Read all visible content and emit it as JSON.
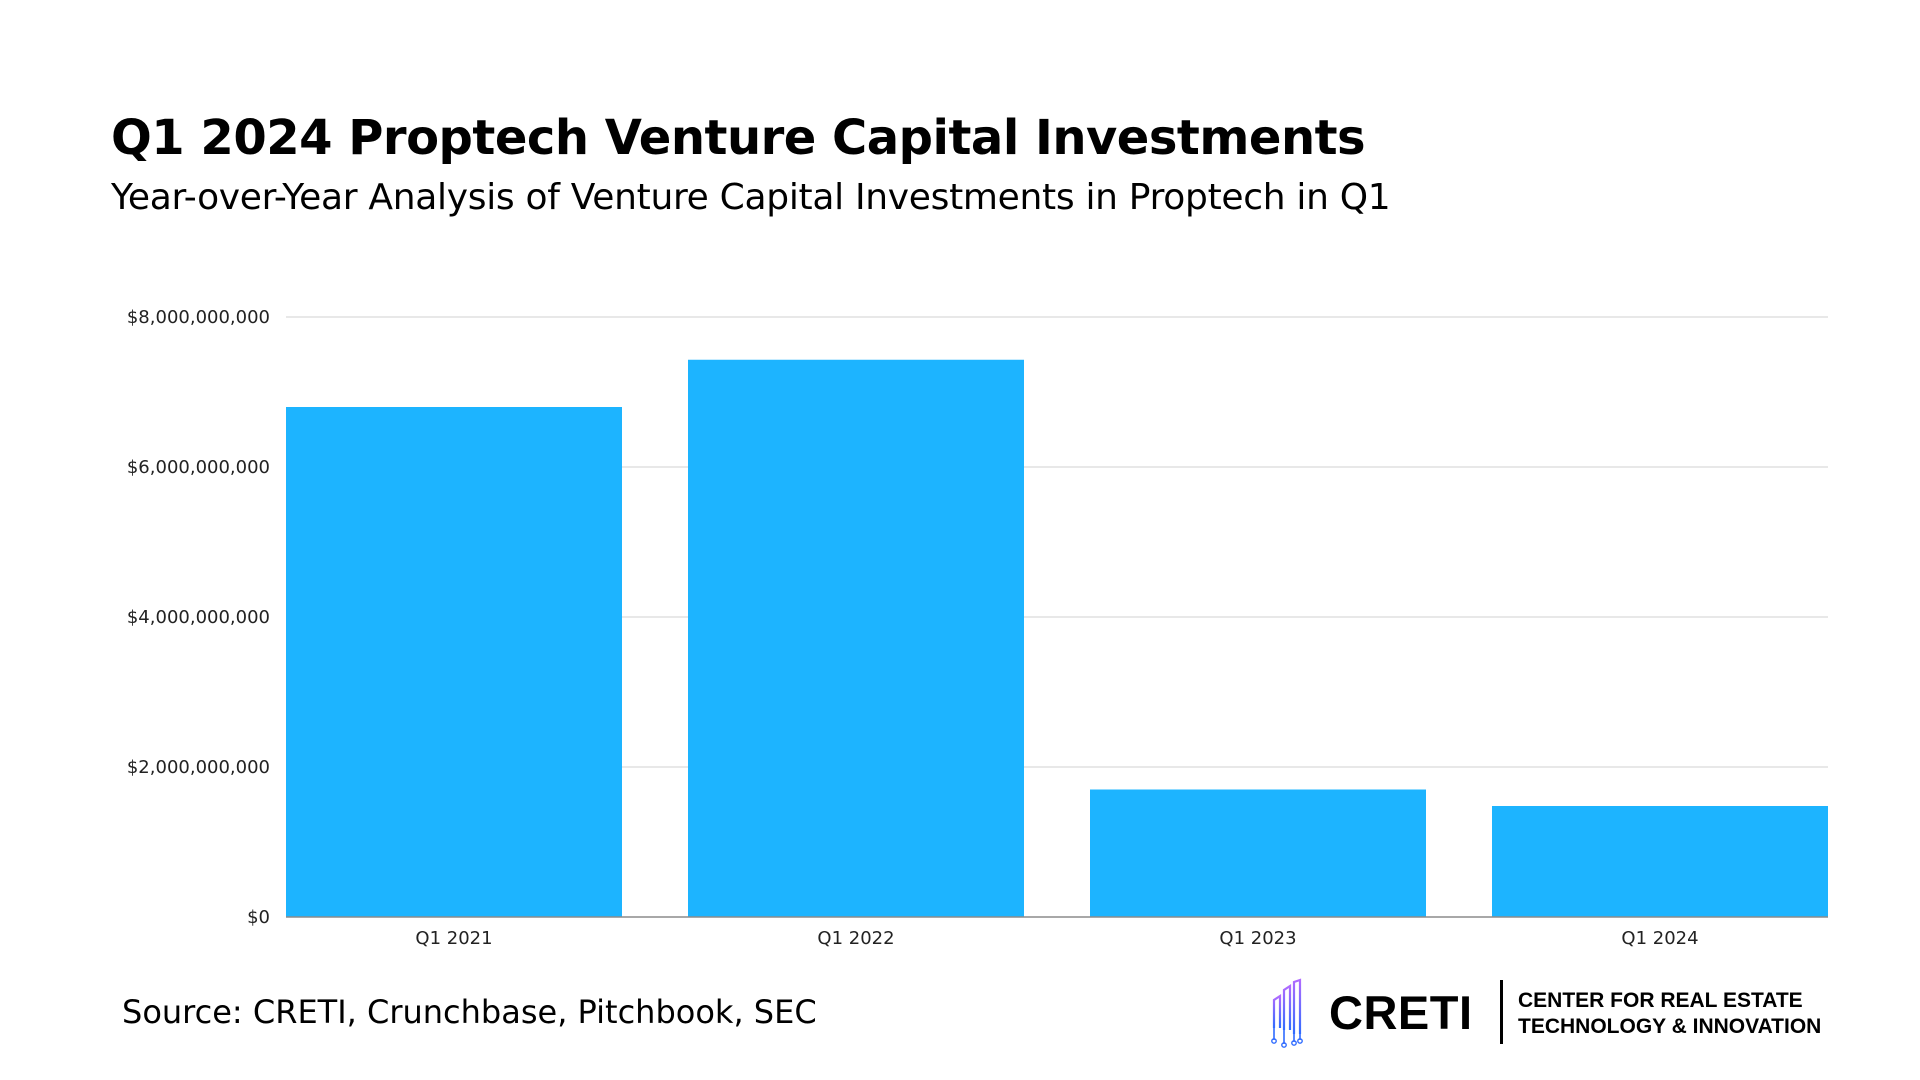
{
  "header": {
    "title": "Q1 2024 Proptech Venture Capital Investments",
    "subtitle": "Year-over-Year Analysis of Venture Capital Investments in Proptech in Q1"
  },
  "footer": {
    "source": "Source: CRETI, Crunchbase, Pitchbook, SEC",
    "logo": {
      "wordmark": "CRETI",
      "tagline_line1": "CENTER FOR REAL ESTATE",
      "tagline_line2": "TECHNOLOGY & INNOVATION",
      "icon": "building-circuit-icon",
      "icon_colors": [
        "#2f6bff",
        "#8a4dff",
        "#b06bff"
      ]
    }
  },
  "colors": {
    "bar": "#1db4ff",
    "grid": "#d9d9d9",
    "axis": "#8c8c8c"
  },
  "chart_data": {
    "type": "bar",
    "title": "",
    "xlabel": "",
    "ylabel": "",
    "categories": [
      "Q1 2021",
      "Q1 2022",
      "Q1 2023",
      "Q1 2024"
    ],
    "values": [
      6800000000,
      7430000000,
      1700000000,
      1480000000
    ],
    "ylim": [
      0,
      8000000000
    ],
    "yticks": [
      0,
      2000000000,
      4000000000,
      6000000000,
      8000000000
    ],
    "ytick_labels": [
      "$0",
      "$2,000,000,000",
      "$4,000,000,000",
      "$6,000,000,000",
      "$8,000,000,000"
    ],
    "grid": true,
    "legend": "none"
  }
}
